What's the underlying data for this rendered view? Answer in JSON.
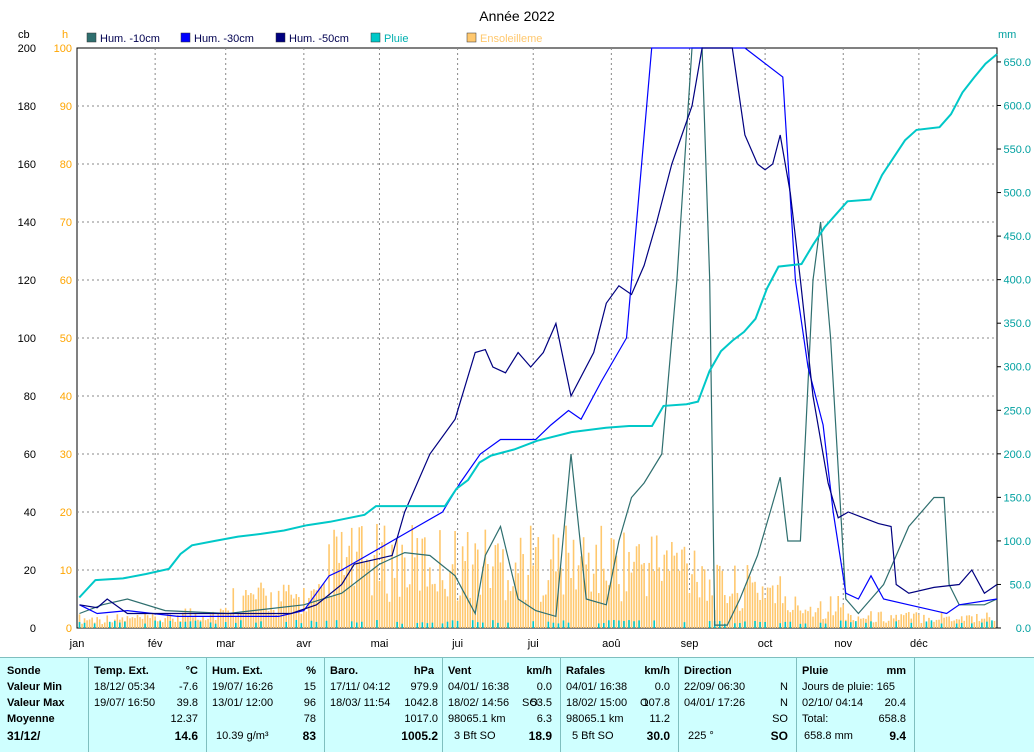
{
  "title": "Année 2022",
  "axis_units": {
    "left1": "cb",
    "left2": "h",
    "right": "mm"
  },
  "legend": [
    {
      "label": "Hum. -10cm",
      "color": "#2f6f6f"
    },
    {
      "label": "Hum. -30cm",
      "color": "#0000ff"
    },
    {
      "label": "Hum. -50cm",
      "color": "#000080"
    },
    {
      "label": "Pluie",
      "color": "#00c8c8"
    },
    {
      "label": "Ensoleilleme",
      "color": "#ffc86e"
    }
  ],
  "chart_data": {
    "type": "line",
    "title": "Année 2022",
    "x_months": [
      "jan",
      "fév",
      "mar",
      "avr",
      "mai",
      "jui",
      "jui",
      "aoû",
      "sep",
      "oct",
      "nov",
      "déc"
    ],
    "left_axis": {
      "unit": "cb",
      "ticks": [
        0,
        20,
        40,
        60,
        80,
        100,
        120,
        140,
        160,
        180,
        200
      ],
      "range": [
        0,
        200
      ]
    },
    "left_axis2": {
      "unit": "h",
      "ticks": [
        0,
        10,
        20,
        30,
        40,
        50,
        60,
        70,
        80,
        90,
        100
      ],
      "range": [
        0,
        100
      ]
    },
    "right_axis": {
      "unit": "mm",
      "ticks": [
        "0.0",
        "50.0",
        "100.0",
        "150.0",
        "200.0",
        "250.0",
        "300.0",
        "350.0",
        "400.0",
        "450.0",
        "500.0",
        "550.0",
        "600.0",
        "650.0"
      ],
      "range": [
        0,
        666
      ]
    },
    "grid": true,
    "series": [
      {
        "name": "Hum. -10cm",
        "axis": "cb",
        "color": "#2f6f6f",
        "points": [
          [
            1,
            5
          ],
          [
            10,
            8
          ],
          [
            20,
            10
          ],
          [
            35,
            6
          ],
          [
            60,
            5
          ],
          [
            90,
            8
          ],
          [
            105,
            12
          ],
          [
            120,
            22
          ],
          [
            130,
            26
          ],
          [
            140,
            25
          ],
          [
            150,
            18
          ],
          [
            158,
            5
          ],
          [
            162,
            25
          ],
          [
            168,
            35
          ],
          [
            175,
            10
          ],
          [
            182,
            6
          ],
          [
            190,
            4
          ],
          [
            196,
            60
          ],
          [
            202,
            10
          ],
          [
            210,
            8
          ],
          [
            215,
            30
          ],
          [
            220,
            45
          ],
          [
            225,
            50
          ],
          [
            232,
            60
          ],
          [
            238,
            120
          ],
          [
            244,
            200
          ],
          [
            248,
            200
          ],
          [
            251,
            120
          ],
          [
            253,
            1
          ],
          [
            258,
            1
          ],
          [
            263,
            10
          ],
          [
            270,
            25
          ],
          [
            275,
            40
          ],
          [
            279,
            52
          ],
          [
            282,
            30
          ],
          [
            287,
            30
          ],
          [
            292,
            120
          ],
          [
            295,
            140
          ],
          [
            299,
            100
          ],
          [
            305,
            10
          ],
          [
            310,
            5
          ],
          [
            320,
            15
          ],
          [
            330,
            35
          ],
          [
            340,
            45
          ],
          [
            344,
            45
          ],
          [
            346,
            15
          ],
          [
            350,
            8
          ],
          [
            360,
            8
          ],
          [
            365,
            10
          ]
        ]
      },
      {
        "name": "Hum. -30cm",
        "axis": "cb",
        "color": "#0000ff",
        "points": [
          [
            1,
            8
          ],
          [
            8,
            5
          ],
          [
            20,
            6
          ],
          [
            40,
            4
          ],
          [
            60,
            4
          ],
          [
            80,
            4
          ],
          [
            90,
            6
          ],
          [
            100,
            18
          ],
          [
            105,
            20
          ],
          [
            115,
            25
          ],
          [
            125,
            30
          ],
          [
            135,
            35
          ],
          [
            145,
            40
          ],
          [
            152,
            50
          ],
          [
            160,
            60
          ],
          [
            168,
            65
          ],
          [
            175,
            65
          ],
          [
            182,
            65
          ],
          [
            188,
            70
          ],
          [
            195,
            75
          ],
          [
            200,
            72
          ],
          [
            208,
            85
          ],
          [
            218,
            100
          ],
          [
            228,
            200
          ],
          [
            240,
            200
          ],
          [
            252,
            200
          ],
          [
            258,
            200
          ],
          [
            265,
            200
          ],
          [
            280,
            190
          ],
          [
            285,
            120
          ],
          [
            290,
            90
          ],
          [
            296,
            70
          ],
          [
            300,
            40
          ],
          [
            305,
            12
          ],
          [
            310,
            10
          ],
          [
            315,
            18
          ],
          [
            320,
            10
          ],
          [
            330,
            8
          ],
          [
            340,
            6
          ],
          [
            345,
            5
          ],
          [
            350,
            8
          ],
          [
            365,
            10
          ]
        ]
      },
      {
        "name": "Hum. -50cm",
        "axis": "cb",
        "color": "#000080",
        "points": [
          [
            1,
            8
          ],
          [
            8,
            7
          ],
          [
            12,
            10
          ],
          [
            20,
            5
          ],
          [
            40,
            5
          ],
          [
            60,
            5
          ],
          [
            85,
            5
          ],
          [
            95,
            8
          ],
          [
            105,
            15
          ],
          [
            110,
            22
          ],
          [
            120,
            24
          ],
          [
            125,
            25
          ],
          [
            130,
            40
          ],
          [
            140,
            60
          ],
          [
            150,
            72
          ],
          [
            158,
            95
          ],
          [
            162,
            96
          ],
          [
            165,
            90
          ],
          [
            170,
            88
          ],
          [
            175,
            95
          ],
          [
            180,
            90
          ],
          [
            185,
            95
          ],
          [
            190,
            105
          ],
          [
            196,
            80
          ],
          [
            205,
            95
          ],
          [
            210,
            112
          ],
          [
            215,
            118
          ],
          [
            220,
            115
          ],
          [
            225,
            125
          ],
          [
            230,
            140
          ],
          [
            236,
            160
          ],
          [
            240,
            170
          ],
          [
            244,
            180
          ],
          [
            248,
            200
          ],
          [
            255,
            200
          ],
          [
            260,
            200
          ],
          [
            265,
            170
          ],
          [
            270,
            160
          ],
          [
            273,
            158
          ],
          [
            276,
            160
          ],
          [
            279,
            170
          ],
          [
            283,
            150
          ],
          [
            287,
            120
          ],
          [
            292,
            80
          ],
          [
            298,
            50
          ],
          [
            302,
            38
          ],
          [
            306,
            40
          ],
          [
            312,
            38
          ],
          [
            318,
            36
          ],
          [
            323,
            35
          ],
          [
            325,
            15
          ],
          [
            330,
            12
          ],
          [
            340,
            14
          ],
          [
            350,
            15
          ],
          [
            355,
            20
          ],
          [
            360,
            12
          ],
          [
            365,
            15
          ]
        ]
      },
      {
        "name": "Pluie",
        "axis": "mm",
        "color": "#00c8c8",
        "points": [
          [
            1,
            35
          ],
          [
            8,
            55
          ],
          [
            20,
            57
          ],
          [
            30,
            62
          ],
          [
            40,
            68
          ],
          [
            45,
            85
          ],
          [
            50,
            95
          ],
          [
            60,
            100
          ],
          [
            70,
            105
          ],
          [
            80,
            108
          ],
          [
            90,
            112
          ],
          [
            100,
            118
          ],
          [
            110,
            122
          ],
          [
            125,
            130
          ],
          [
            130,
            140
          ],
          [
            150,
            140
          ],
          [
            160,
            140
          ],
          [
            165,
            160
          ],
          [
            170,
            170
          ],
          [
            175,
            190
          ],
          [
            180,
            198
          ],
          [
            190,
            205
          ],
          [
            200,
            215
          ],
          [
            215,
            225
          ],
          [
            230,
            230
          ],
          [
            240,
            232
          ],
          [
            250,
            232
          ],
          [
            255,
            255
          ],
          [
            265,
            257
          ],
          [
            270,
            260
          ],
          [
            275,
            295
          ],
          [
            280,
            318
          ],
          [
            285,
            330
          ],
          [
            290,
            340
          ],
          [
            295,
            355
          ],
          [
            300,
            390
          ],
          [
            305,
            415
          ],
          [
            315,
            418
          ],
          [
            320,
            440
          ],
          [
            325,
            460
          ],
          [
            330,
            475
          ],
          [
            335,
            490
          ],
          [
            345,
            492
          ],
          [
            350,
            520
          ],
          [
            355,
            540
          ],
          [
            360,
            560
          ],
          [
            365,
            572
          ],
          [
            375,
            575
          ],
          [
            380,
            590
          ],
          [
            385,
            615
          ],
          [
            390,
            632
          ],
          [
            395,
            648
          ],
          [
            400,
            659
          ]
        ]
      }
    ],
    "sunshine_hours": "daily bars 0–22 h (see script)"
  },
  "panel": {
    "rows": [
      "Sonde",
      "Valeur Min",
      "Valeur Max",
      "Moyenne",
      "31/12/"
    ],
    "temp": {
      "header": "Temp. Ext.",
      "unit": "°C",
      "min": {
        "date": "18/12/  05:34",
        "value": "-7.6"
      },
      "max": {
        "date": "19/07/  16:50",
        "value": "39.8"
      },
      "moyenne": "12.37",
      "last": "14.6"
    },
    "hum": {
      "header": "Hum. Ext.",
      "unit": "%",
      "min": {
        "date": "19/07/  16:26",
        "value": "15"
      },
      "max": {
        "date": "13/01/  12:00",
        "value": "96"
      },
      "moyenne": "78",
      "last_extra": "10.39 g/m³",
      "last": "83"
    },
    "baro": {
      "header": "Baro.",
      "unit": "hPa",
      "min": {
        "date": "17/11/  04:12",
        "value": "979.9"
      },
      "max": {
        "date": "18/03/  11:54",
        "value": "1042.8"
      },
      "moyenne": "1017.0",
      "last": "1005.2"
    },
    "vent": {
      "header": "Vent",
      "unit": "km/h",
      "min": {
        "date": "04/01/  16:38",
        "value": "0.0"
      },
      "max": {
        "date": "18/02/  14:56",
        "dir": "SO",
        "value": "53.5"
      },
      "moyenne_label": "98065.1 km",
      "moyenne": "6.3",
      "last_extra": "3 Bft SO",
      "last": "18.9"
    },
    "rafales": {
      "header": "Rafales",
      "unit": "km/h",
      "min": {
        "date": "04/01/  16:38",
        "value": "0.0"
      },
      "max": {
        "date": "18/02/  15:00",
        "dir": "O",
        "value": "107.8"
      },
      "moyenne_label": "98065.1 km",
      "moyenne": "11.2",
      "last_extra": "5 Bft SO",
      "last": "30.0"
    },
    "direction": {
      "header": "Direction",
      "min": {
        "date": "22/09/  06:30",
        "value": "N"
      },
      "max": {
        "date": "04/01/  17:26",
        "value": "N"
      },
      "moyenne": "SO",
      "last_extra": "225 °",
      "last": "SO"
    },
    "pluie": {
      "header": "Pluie",
      "unit": "mm",
      "jours": "Jours de pluie: 165",
      "max": {
        "date": "02/10/  04:14",
        "value": "20.4"
      },
      "total_label": "Total:",
      "total": "658.8",
      "last_extra": "658.8 mm",
      "last": "9.4"
    }
  }
}
